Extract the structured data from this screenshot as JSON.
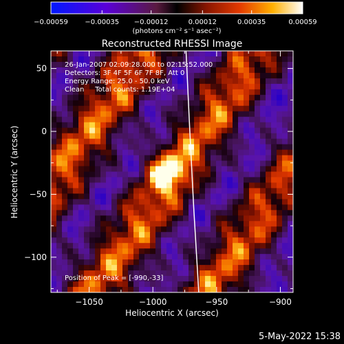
{
  "colorbar": {
    "ticks": [
      "−0.00059",
      "−0.00035",
      "−0.00012",
      "0.00012",
      "0.00035",
      "0.00059"
    ],
    "units": "(photons cm⁻² s⁻¹ asec⁻²)"
  },
  "footer": {
    "timestamp": "5-May-2022 15:38"
  },
  "chart_data": {
    "type": "heatmap",
    "title": "Reconstructed RHESSI Image",
    "xlabel": "Heliocentric X (arcsec)",
    "ylabel": "Heliocentric Y (arcsec)",
    "xlim": [
      -1080,
      -890
    ],
    "ylim": [
      -128,
      64
    ],
    "x_ticks": [
      {
        "value": -1050,
        "label": "−1050"
      },
      {
        "value": -1000,
        "label": "−1000"
      },
      {
        "value": -950,
        "label": "−950"
      },
      {
        "value": -900,
        "label": "−900"
      }
    ],
    "y_ticks": [
      {
        "value": 50,
        "label": "50"
      },
      {
        "value": 0,
        "label": "0"
      },
      {
        "value": -50,
        "label": "−50"
      },
      {
        "value": -100,
        "label": "−100"
      }
    ],
    "colorbar_range": [
      -0.00059,
      0.00059
    ],
    "annotations": [
      "26-Jan-2007 02:09:28.000 to 02:15:52.000",
      "Detectors: 3F 4F 5F 6F 7F 8F, Att 0",
      "Energy Range: 25.0 - 50.0 keV",
      "Clean     Total counts: 1.19E+04"
    ],
    "peak_label": "Position of Peak = [-990,-33]",
    "peak": {
      "x": -990,
      "y": -33
    },
    "limb_curve": [
      {
        "x": -974,
        "y": 64
      },
      {
        "x": -971,
        "y": 0
      },
      {
        "x": -968,
        "y": -60
      },
      {
        "x": -964,
        "y": -128
      }
    ]
  }
}
